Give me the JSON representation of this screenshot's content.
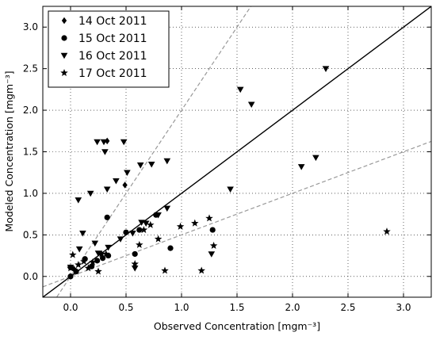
{
  "chart_data": {
    "type": "scatter",
    "xlabel": "Observed Concentration [mgm⁻³]",
    "ylabel": "Modeled Concentration [mgm⁻³]",
    "xlim": [
      -0.25,
      3.25
    ],
    "ylim": [
      -0.25,
      3.25
    ],
    "xticks": [
      0.0,
      0.5,
      1.0,
      1.5,
      2.0,
      2.5,
      3.0
    ],
    "yticks": [
      0.0,
      0.5,
      1.0,
      1.5,
      2.0,
      2.5,
      3.0
    ],
    "xtick_labels": [
      "0.0",
      "0.5",
      "1.0",
      "1.5",
      "2.0",
      "2.5",
      "3.0"
    ],
    "ytick_labels": [
      "0.0",
      "0.5",
      "1.0",
      "1.5",
      "2.0",
      "2.5",
      "3.0"
    ],
    "grid": true,
    "legend_position": "top-left",
    "reference_lines": [
      {
        "kind": "one-to-one",
        "slope": 1.0,
        "style": "solid",
        "color": "#000000"
      },
      {
        "kind": "factor-2-upper",
        "slope": 2.0,
        "style": "dashed",
        "color": "#999999"
      },
      {
        "kind": "factor-2-lower",
        "slope": 0.5,
        "style": "dashed",
        "color": "#999999"
      }
    ],
    "series": [
      {
        "name": "14 Oct 2011",
        "marker": "diamond",
        "points": [
          [
            0.33,
            1.63
          ],
          [
            0.49,
            1.1
          ],
          [
            0.03,
            0.09
          ]
        ]
      },
      {
        "name": "15 Oct 2011",
        "marker": "circle",
        "points": [
          [
            0.0,
            0.0
          ],
          [
            0.0,
            0.11
          ],
          [
            0.05,
            0.06
          ],
          [
            0.13,
            0.21
          ],
          [
            0.19,
            0.12
          ],
          [
            0.24,
            0.19
          ],
          [
            0.29,
            0.22
          ],
          [
            0.33,
            0.71
          ],
          [
            0.34,
            0.25
          ],
          [
            0.5,
            0.53
          ],
          [
            0.58,
            0.27
          ],
          [
            0.62,
            0.56
          ],
          [
            0.77,
            0.74
          ],
          [
            0.9,
            0.34
          ],
          [
            1.28,
            0.56
          ]
        ]
      },
      {
        "name": "16 Oct 2011",
        "marker": "triangle-down",
        "points": [
          [
            0.0,
            0.11
          ],
          [
            0.07,
            0.92
          ],
          [
            0.11,
            0.52
          ],
          [
            0.18,
            1.0
          ],
          [
            0.24,
            1.62
          ],
          [
            0.25,
            0.28
          ],
          [
            0.3,
            1.62
          ],
          [
            0.31,
            1.5
          ],
          [
            0.33,
            1.05
          ],
          [
            0.34,
            0.35
          ],
          [
            0.41,
            1.15
          ],
          [
            0.48,
            1.62
          ],
          [
            0.51,
            1.25
          ],
          [
            0.58,
            0.1
          ],
          [
            0.63,
            1.34
          ],
          [
            0.64,
            0.65
          ],
          [
            0.73,
            1.35
          ],
          [
            0.79,
            0.74
          ],
          [
            0.87,
            1.39
          ],
          [
            0.87,
            0.82
          ],
          [
            1.27,
            0.27
          ],
          [
            1.44,
            1.05
          ],
          [
            1.53,
            2.25
          ],
          [
            1.63,
            2.07
          ],
          [
            2.08,
            1.32
          ],
          [
            2.21,
            1.43
          ],
          [
            2.3,
            2.5
          ],
          [
            0.45,
            0.45
          ],
          [
            0.56,
            0.52
          ],
          [
            0.68,
            0.64
          ],
          [
            0.08,
            0.33
          ],
          [
            0.22,
            0.4
          ]
        ]
      },
      {
        "name": "17 Oct 2011",
        "marker": "star",
        "points": [
          [
            0.0,
            0.1
          ],
          [
            0.02,
            0.26
          ],
          [
            0.05,
            0.06
          ],
          [
            0.07,
            0.14
          ],
          [
            0.12,
            0.18
          ],
          [
            0.16,
            0.1
          ],
          [
            0.2,
            0.17
          ],
          [
            0.25,
            0.06
          ],
          [
            0.28,
            0.27
          ],
          [
            0.32,
            0.27
          ],
          [
            0.58,
            0.15
          ],
          [
            0.62,
            0.38
          ],
          [
            0.66,
            0.56
          ],
          [
            0.72,
            0.62
          ],
          [
            0.79,
            0.45
          ],
          [
            0.85,
            0.07
          ],
          [
            0.99,
            0.6
          ],
          [
            1.12,
            0.64
          ],
          [
            1.18,
            0.07
          ],
          [
            1.25,
            0.7
          ],
          [
            1.29,
            0.37
          ],
          [
            2.85,
            0.54
          ]
        ]
      }
    ]
  }
}
